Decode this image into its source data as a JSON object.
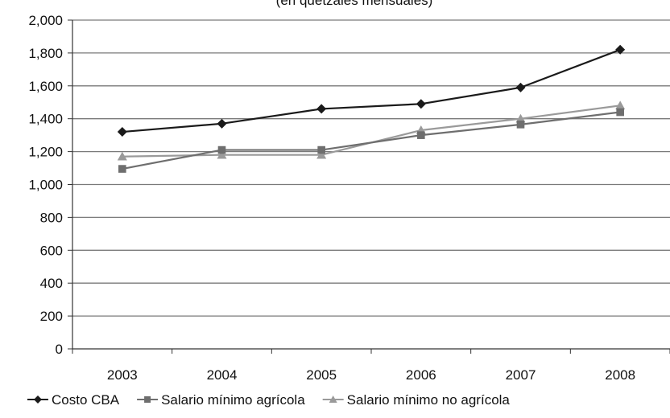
{
  "chart_data": {
    "type": "line",
    "title": "(en quetzales mensuales)",
    "xlabel": "",
    "ylabel": "",
    "categories": [
      "2003",
      "2004",
      "2005",
      "2006",
      "2007",
      "2008"
    ],
    "ylim": [
      0,
      2000
    ],
    "yticks": [
      0,
      200,
      400,
      600,
      800,
      1000,
      1200,
      1400,
      1600,
      1800,
      2000
    ],
    "ytick_labels": [
      "0",
      "200",
      "400",
      "600",
      "800",
      "1,000",
      "1,200",
      "1,400",
      "1,600",
      "1,800",
      "2,000"
    ],
    "grid": "horizontal",
    "legend_position": "bottom",
    "series": [
      {
        "name": "Costo CBA",
        "marker": "diamond",
        "color": "#1a1a1a",
        "values": [
          1320,
          1370,
          1460,
          1490,
          1590,
          1820
        ]
      },
      {
        "name": "Salario mínimo agrícola",
        "marker": "square",
        "color": "#6e6e6e",
        "values": [
          1095,
          1210,
          1210,
          1300,
          1365,
          1440
        ]
      },
      {
        "name": "Salario mínimo no agrícola",
        "marker": "triangle",
        "color": "#9a9a9a",
        "values": [
          1170,
          1180,
          1180,
          1330,
          1400,
          1480
        ]
      }
    ]
  }
}
